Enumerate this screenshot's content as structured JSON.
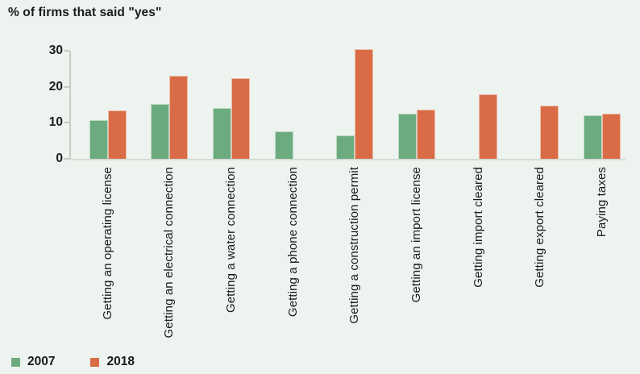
{
  "title": "% of firms that said \"yes\"",
  "chart_data": {
    "type": "bar",
    "title": "% of firms that said \"yes\"",
    "categories": [
      "Getting an operating license",
      "Getting an electrical connection",
      "Getting a water connection",
      "Getting a phone connection",
      "Getting a construction permit",
      "Getting an import license",
      "Getting import cleared",
      "Getting export cleared",
      "Paying taxes"
    ],
    "series": [
      {
        "name": "2007",
        "color": "#6cab7f",
        "values": [
          10.7,
          15.2,
          14.1,
          7.6,
          6.5,
          12.5,
          null,
          null,
          12.1
        ]
      },
      {
        "name": "2018",
        "color": "#d96c46",
        "values": [
          13.4,
          23.2,
          22.4,
          null,
          30.5,
          13.7,
          17.9,
          14.8,
          12.6
        ]
      }
    ],
    "xlabel": "",
    "ylabel": "",
    "yticks": [
      0,
      10,
      20,
      30
    ],
    "ylim": [
      0,
      30
    ],
    "grid": false,
    "legend_position": "bottom-left"
  },
  "legend": {
    "items": [
      {
        "label": "2007",
        "color": "#6cab7f"
      },
      {
        "label": "2018",
        "color": "#d96c46"
      }
    ]
  },
  "colors": {
    "background": "#edf3ee",
    "text": "#1b1b1b",
    "axis": "#c6cdc6",
    "baseline": "#d5dbd5",
    "series_2007": "#6cab7f",
    "series_2018": "#d96c46"
  }
}
